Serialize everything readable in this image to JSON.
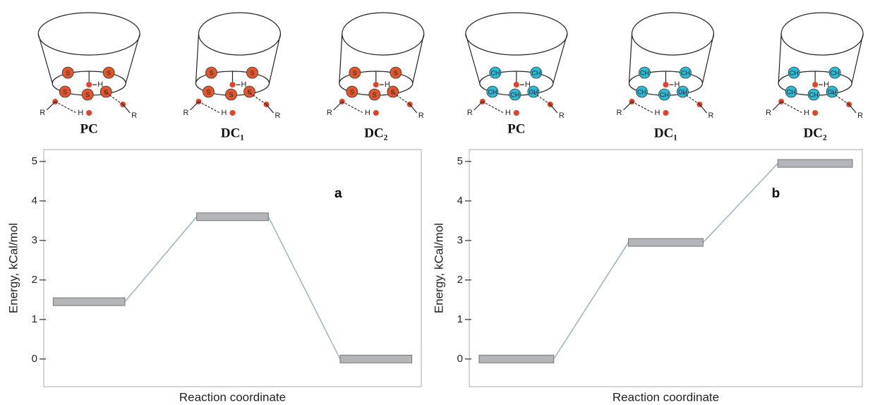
{
  "chart_data": [
    {
      "type": "energy-level",
      "panel_label": "a",
      "categories": [
        "PC",
        "DC₁",
        "DC₂"
      ],
      "values": [
        1.45,
        3.6,
        0
      ],
      "ylim": [
        -0.7,
        5.3
      ],
      "yticks": [
        0,
        1,
        2,
        3,
        4,
        5
      ],
      "y_label": "Energy, kCal/mol",
      "x_label": "Reaction coordinate",
      "bar_color": "#b3b5b8",
      "line_color": "#9fb6c4",
      "site_color": "#e2562c",
      "site_label": "S",
      "substituent_label": "R",
      "hydrogen_label": "H"
    },
    {
      "type": "energy-level",
      "panel_label": "b",
      "categories": [
        "PC",
        "DC₁",
        "DC₂"
      ],
      "values": [
        0,
        2.95,
        4.95
      ],
      "ylim": [
        -0.7,
        5.3
      ],
      "yticks": [
        0,
        1,
        2,
        3,
        4,
        5
      ],
      "y_label": "Energy, kCal/mol",
      "x_label": "Reaction coordinate",
      "bar_color": "#b3b5b8",
      "line_color": "#9fb6c4",
      "site_color": "#2bbbd6",
      "site_label": "CH",
      "substituent_label": "R",
      "hydrogen_label": "H"
    }
  ]
}
